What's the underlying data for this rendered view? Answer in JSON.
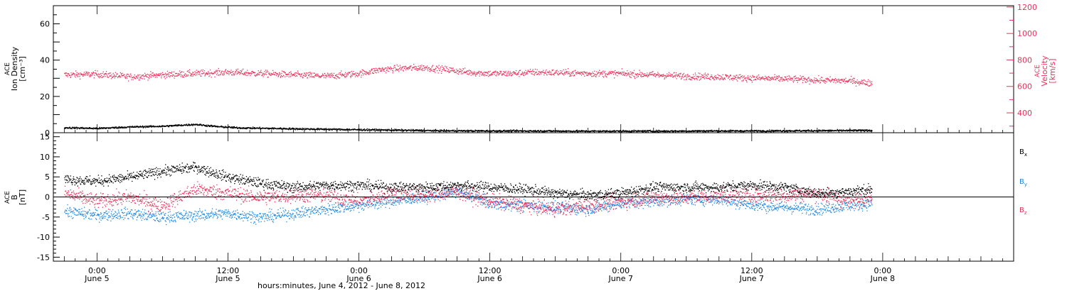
{
  "colors": {
    "axis": "#000000",
    "density": "#000000",
    "velocity": "#e8325c",
    "bx": "#000000",
    "by": "#1e88e5",
    "bz": "#e8325c"
  },
  "chart_data": [
    {
      "type": "scatter",
      "panel": "plasma",
      "ylabel_lines": [
        "ACE",
        "Ion Density",
        "[cm⁻³]"
      ],
      "ylim": [
        0,
        70
      ],
      "yticks": [
        0,
        20,
        40,
        60
      ],
      "y2label_lines": [
        "ACE",
        "Velocity",
        "[km/s]"
      ],
      "y2lim": [
        250,
        1210
      ],
      "y2ticks": [
        400,
        600,
        800,
        1000,
        1200
      ],
      "series": [
        {
          "key": "density",
          "points": [
            [
              -3,
              3.0
            ],
            [
              0,
              2.6
            ],
            [
              3,
              3.4
            ],
            [
              6,
              3.8
            ],
            [
              9,
              4.8
            ],
            [
              11,
              3.6
            ],
            [
              13,
              2.9
            ],
            [
              16,
              2.6
            ],
            [
              20,
              2.2
            ],
            [
              24,
              1.9
            ],
            [
              28,
              1.6
            ],
            [
              32,
              1.3
            ],
            [
              36,
              1.2
            ],
            [
              40,
              1.2
            ],
            [
              44,
              1.1
            ],
            [
              48,
              1.1
            ],
            [
              52,
              1.1
            ],
            [
              56,
              1.2
            ],
            [
              60,
              1.2
            ],
            [
              64,
              1.3
            ],
            [
              68,
              1.4
            ],
            [
              71,
              1.5
            ]
          ]
        },
        {
          "key": "velocity",
          "points": [
            [
              -3,
              690
            ],
            [
              0,
              695
            ],
            [
              3,
              675
            ],
            [
              6,
              690
            ],
            [
              9,
              700
            ],
            [
              12,
              710
            ],
            [
              15,
              700
            ],
            [
              18,
              690
            ],
            [
              21,
              680
            ],
            [
              24,
              700
            ],
            [
              26,
              730
            ],
            [
              28,
              740
            ],
            [
              30,
              745
            ],
            [
              32,
              730
            ],
            [
              34,
              710
            ],
            [
              36,
              700
            ],
            [
              38,
              700
            ],
            [
              40,
              710
            ],
            [
              43,
              705
            ],
            [
              46,
              700
            ],
            [
              48,
              700
            ],
            [
              51,
              690
            ],
            [
              54,
              680
            ],
            [
              57,
              675
            ],
            [
              60,
              665
            ],
            [
              63,
              660
            ],
            [
              66,
              650
            ],
            [
              69,
              645
            ],
            [
              71,
              625
            ]
          ]
        }
      ]
    },
    {
      "type": "scatter",
      "panel": "magnetic",
      "ylabel_lines": [
        "ACE",
        "B",
        "[nT]"
      ],
      "ylim": [
        -16,
        16
      ],
      "yticks": [
        -15,
        -10,
        -5,
        0,
        5,
        10,
        15
      ],
      "series": [
        {
          "key": "bx",
          "legend_letter": "B",
          "legend_sub": "x",
          "points": [
            [
              -3,
              4.5
            ],
            [
              0,
              4.0
            ],
            [
              3,
              5.0
            ],
            [
              6,
              6.5
            ],
            [
              9,
              7.5
            ],
            [
              12,
              5.0
            ],
            [
              15,
              3.5
            ],
            [
              18,
              2.5
            ],
            [
              21,
              3.0
            ],
            [
              24,
              3.0
            ],
            [
              27,
              2.5
            ],
            [
              30,
              2.5
            ],
            [
              33,
              3.0
            ],
            [
              36,
              2.5
            ],
            [
              39,
              2.0
            ],
            [
              42,
              1.0
            ],
            [
              45,
              0.5
            ],
            [
              48,
              1.0
            ],
            [
              51,
              2.5
            ],
            [
              54,
              2.5
            ],
            [
              57,
              2.5
            ],
            [
              60,
              3.0
            ],
            [
              63,
              2.5
            ],
            [
              66,
              1.0
            ],
            [
              69,
              1.5
            ],
            [
              71,
              2.0
            ]
          ]
        },
        {
          "key": "by",
          "legend_letter": "B",
          "legend_sub": "y",
          "points": [
            [
              -3,
              -3.5
            ],
            [
              0,
              -4.5
            ],
            [
              3,
              -4.0
            ],
            [
              6,
              -5.0
            ],
            [
              9,
              -4.5
            ],
            [
              12,
              -4.0
            ],
            [
              15,
              -5.0
            ],
            [
              18,
              -4.0
            ],
            [
              21,
              -3.0
            ],
            [
              24,
              -2.0
            ],
            [
              27,
              -1.0
            ],
            [
              30,
              0.0
            ],
            [
              33,
              1.5
            ],
            [
              36,
              -1.5
            ],
            [
              39,
              -2.0
            ],
            [
              42,
              -2.5
            ],
            [
              45,
              -3.0
            ],
            [
              48,
              -1.5
            ],
            [
              51,
              -1.0
            ],
            [
              54,
              -0.5
            ],
            [
              57,
              -0.5
            ],
            [
              60,
              -2.0
            ],
            [
              63,
              -2.5
            ],
            [
              66,
              -3.0
            ],
            [
              69,
              -2.0
            ],
            [
              71,
              -1.5
            ]
          ]
        },
        {
          "key": "bz",
          "legend_letter": "B",
          "legend_sub": "z",
          "points": [
            [
              -3,
              1.0
            ],
            [
              0,
              -1.0
            ],
            [
              3,
              0.0
            ],
            [
              6,
              -2.0
            ],
            [
              9,
              2.0
            ],
            [
              12,
              1.0
            ],
            [
              15,
              0.0
            ],
            [
              18,
              0.5
            ],
            [
              21,
              0.5
            ],
            [
              24,
              -1.0
            ],
            [
              27,
              1.0
            ],
            [
              30,
              0.5
            ],
            [
              33,
              1.5
            ],
            [
              36,
              -1.0
            ],
            [
              39,
              -2.0
            ],
            [
              42,
              -3.0
            ],
            [
              45,
              -2.0
            ],
            [
              48,
              -1.0
            ],
            [
              51,
              0.0
            ],
            [
              54,
              0.0
            ],
            [
              57,
              0.5
            ],
            [
              60,
              0.5
            ],
            [
              63,
              0.5
            ],
            [
              66,
              1.0
            ],
            [
              69,
              -1.0
            ],
            [
              71,
              0.5
            ]
          ]
        }
      ]
    }
  ],
  "xaxis": {
    "xlim": [
      -4,
      84
    ],
    "unit_note": "hours from 0:00 June 5",
    "ticks": [
      {
        "x": 0,
        "time": "0:00",
        "day": "June 5"
      },
      {
        "x": 12,
        "time": "12:00",
        "day": "June 5"
      },
      {
        "x": 24,
        "time": "0:00",
        "day": "June 6"
      },
      {
        "x": 36,
        "time": "12:00",
        "day": "June 6"
      },
      {
        "x": 48,
        "time": "0:00",
        "day": "June 7"
      },
      {
        "x": 60,
        "time": "12:00",
        "day": "June 7"
      },
      {
        "x": 72,
        "time": "0:00",
        "day": "June 8"
      }
    ],
    "label": "hours:minutes, June  4, 2012 - June  8, 2012"
  }
}
